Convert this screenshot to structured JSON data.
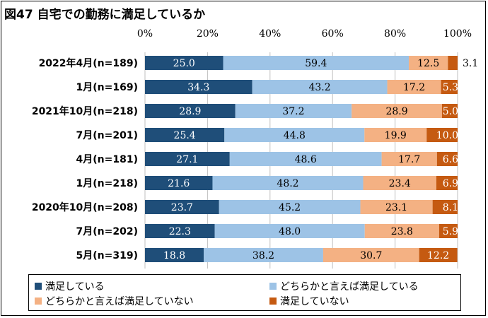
{
  "chart_data": {
    "type": "bar",
    "orientation": "horizontal",
    "stacked": "percent",
    "title": "図47 自宅での勤務に満足しているか",
    "xlim": [
      0,
      100
    ],
    "x_ticks": [
      "0%",
      "20%",
      "40%",
      "60%",
      "80%",
      "100%"
    ],
    "categories": [
      "2022年4月(n=189)",
      "1月(n=169)",
      "2021年10月(n=218)",
      "7月(n=201)",
      "4月(n=181)",
      "1月(n=218)",
      "2020年10月(n=208)",
      "7月(n=202)",
      "5月(n=319)"
    ],
    "series": [
      {
        "name": "満足している",
        "color": "#1f4e79",
        "label_color": "#ffffff",
        "values": [
          25.0,
          34.3,
          28.9,
          25.4,
          27.1,
          21.6,
          23.7,
          22.3,
          18.8
        ],
        "labels": [
          "25.0",
          "34.3",
          "28.9",
          "25.4",
          "27.1",
          "21.6",
          "23.7",
          "22.3",
          "18.8"
        ]
      },
      {
        "name": "どちらかと言えば満足している",
        "color": "#9dc3e6",
        "label_color": "#000000",
        "values": [
          59.4,
          43.2,
          37.2,
          44.8,
          48.6,
          48.2,
          45.2,
          48.0,
          38.2
        ],
        "labels": [
          "59.4",
          "43.2",
          "37.2",
          "44.8",
          "48.6",
          "48.2",
          "45.2",
          "48.0",
          "38.2"
        ]
      },
      {
        "name": "どちらかと言えば満足していない",
        "color": "#f4b183",
        "label_color": "#000000",
        "values": [
          12.5,
          17.2,
          28.9,
          19.9,
          17.7,
          23.4,
          23.1,
          23.8,
          30.7
        ],
        "labels": [
          "12.5",
          "17.2",
          "28.9",
          "19.9",
          "17.7",
          "23.4",
          "23.1",
          "23.8",
          "30.7"
        ]
      },
      {
        "name": "満足していない",
        "color": "#c55a11",
        "label_color": "#ffffff",
        "values": [
          3.1,
          5.3,
          5.0,
          10.0,
          6.6,
          6.9,
          8.1,
          5.9,
          12.2
        ],
        "labels": [
          "3.1",
          "5.3",
          "5.0",
          "10.0",
          "6.6",
          "6.9",
          "8.1",
          "5.9",
          "12.2"
        ]
      }
    ],
    "legend_position": "bottom",
    "grid": true
  }
}
